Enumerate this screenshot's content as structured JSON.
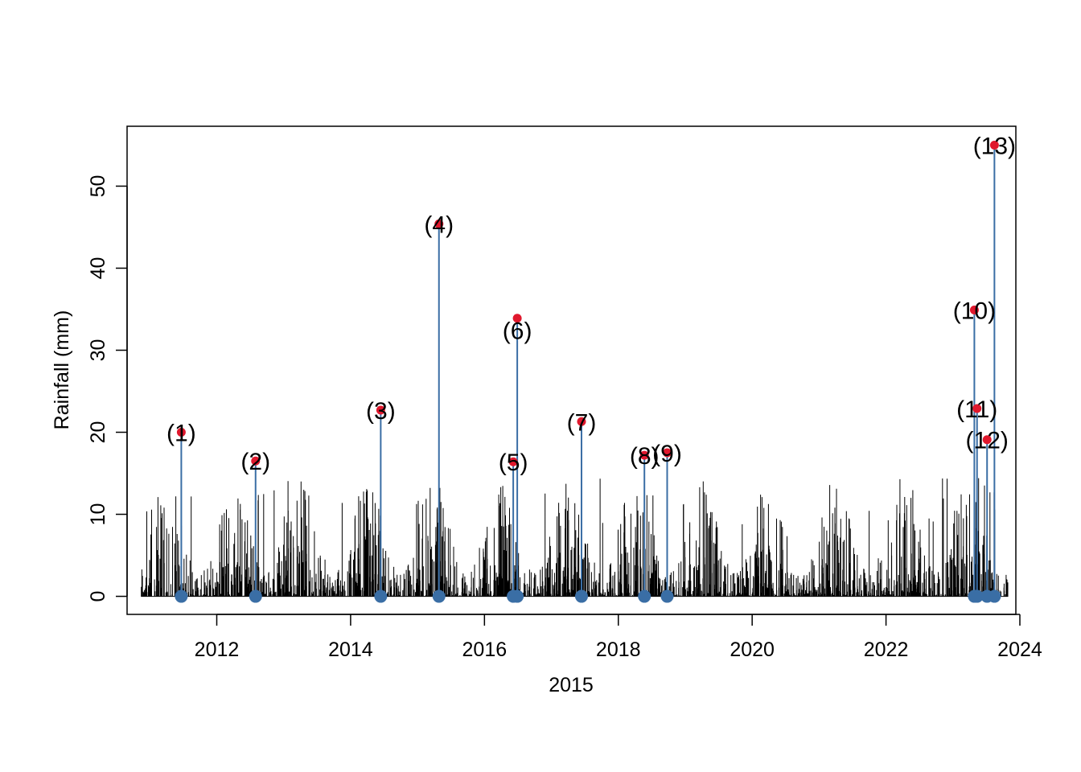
{
  "chart_data": {
    "type": "line",
    "title": "",
    "xlabel": "2015",
    "ylabel": "Rainfall (mm)",
    "xlim": [
      2010.66,
      2023.94
    ],
    "ylim": [
      -2.2,
      57.3
    ],
    "x_ticks": [
      2012,
      2014,
      2016,
      2018,
      2020,
      2022,
      2024
    ],
    "x_tick_labels": [
      "2012",
      "2014",
      "2016",
      "2018",
      "2020",
      "2022",
      "2024"
    ],
    "y_ticks": [
      0,
      10,
      20,
      30,
      40,
      50
    ],
    "y_tick_labels": [
      "0",
      "10",
      "20",
      "30",
      "40",
      "50"
    ],
    "grid": false,
    "legend": "none",
    "background_series": {
      "name": "",
      "x_range": [
        2010.87,
        2023.82
      ],
      "color": "#000000",
      "description_values_max": 14.5
    },
    "events": [
      {
        "label": "(1)",
        "x": 2011.47,
        "y": 20.0
      },
      {
        "label": "(2)",
        "x": 2012.58,
        "y": 16.5
      },
      {
        "label": "(3)",
        "x": 2014.45,
        "y": 22.7
      },
      {
        "label": "(4)",
        "x": 2015.32,
        "y": 45.4
      },
      {
        "label": "(5)",
        "x": 2016.43,
        "y": 16.4
      },
      {
        "label": "(6)",
        "x": 2016.49,
        "y": 33.9
      },
      {
        "label": "(7)",
        "x": 2017.45,
        "y": 21.3
      },
      {
        "label": "(8)",
        "x": 2018.39,
        "y": 17.2
      },
      {
        "label": "(9)",
        "x": 2018.73,
        "y": 17.5
      },
      {
        "label": "(10)",
        "x": 2023.32,
        "y": 34.9
      },
      {
        "label": "(11)",
        "x": 2023.36,
        "y": 22.9
      },
      {
        "label": "(12)",
        "x": 2023.51,
        "y": 19.1
      },
      {
        "label": "(13)",
        "x": 2023.62,
        "y": 55.0
      }
    ],
    "colors": {
      "event_stem": "#3a6ea5",
      "event_base_marker": "#3a6ea5",
      "event_peak_marker": "#e0182d",
      "background_series": "#000000"
    }
  }
}
